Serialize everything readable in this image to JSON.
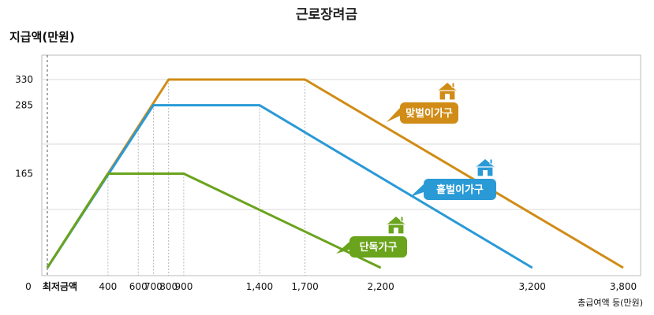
{
  "chart_data": {
    "type": "line",
    "title": "근로장려금",
    "ylabel": "지급액(만원)",
    "xlabel": "총급여액 등(만원)",
    "x_origin_labels": [
      "0",
      "최저금액"
    ],
    "xticks": [
      400,
      600,
      700,
      800,
      900,
      1400,
      1700,
      2200,
      3200,
      3800
    ],
    "xtick_labels": [
      "400",
      "600",
      "700",
      "800",
      "900",
      "1,400",
      "1,700",
      "2,200",
      "3,200",
      "3,800"
    ],
    "yticks": [
      165,
      285,
      330
    ],
    "ytick_labels": [
      "165",
      "285",
      "330"
    ],
    "xlim": [
      0,
      3800
    ],
    "ylim": [
      0,
      330
    ],
    "grid": true,
    "series": [
      {
        "name": "맞벌이가구",
        "color": "#d08c16",
        "x": [
          0,
          800,
          1700,
          3800
        ],
        "y": [
          0,
          330,
          330,
          0
        ]
      },
      {
        "name": "홑벌이가구",
        "color": "#2a9ad6",
        "x": [
          0,
          700,
          1400,
          3200
        ],
        "y": [
          0,
          285,
          285,
          0
        ]
      },
      {
        "name": "단독가구",
        "color": "#6aa31c",
        "x": [
          0,
          400,
          900,
          2200
        ],
        "y": [
          0,
          165,
          165,
          0
        ]
      }
    ]
  }
}
